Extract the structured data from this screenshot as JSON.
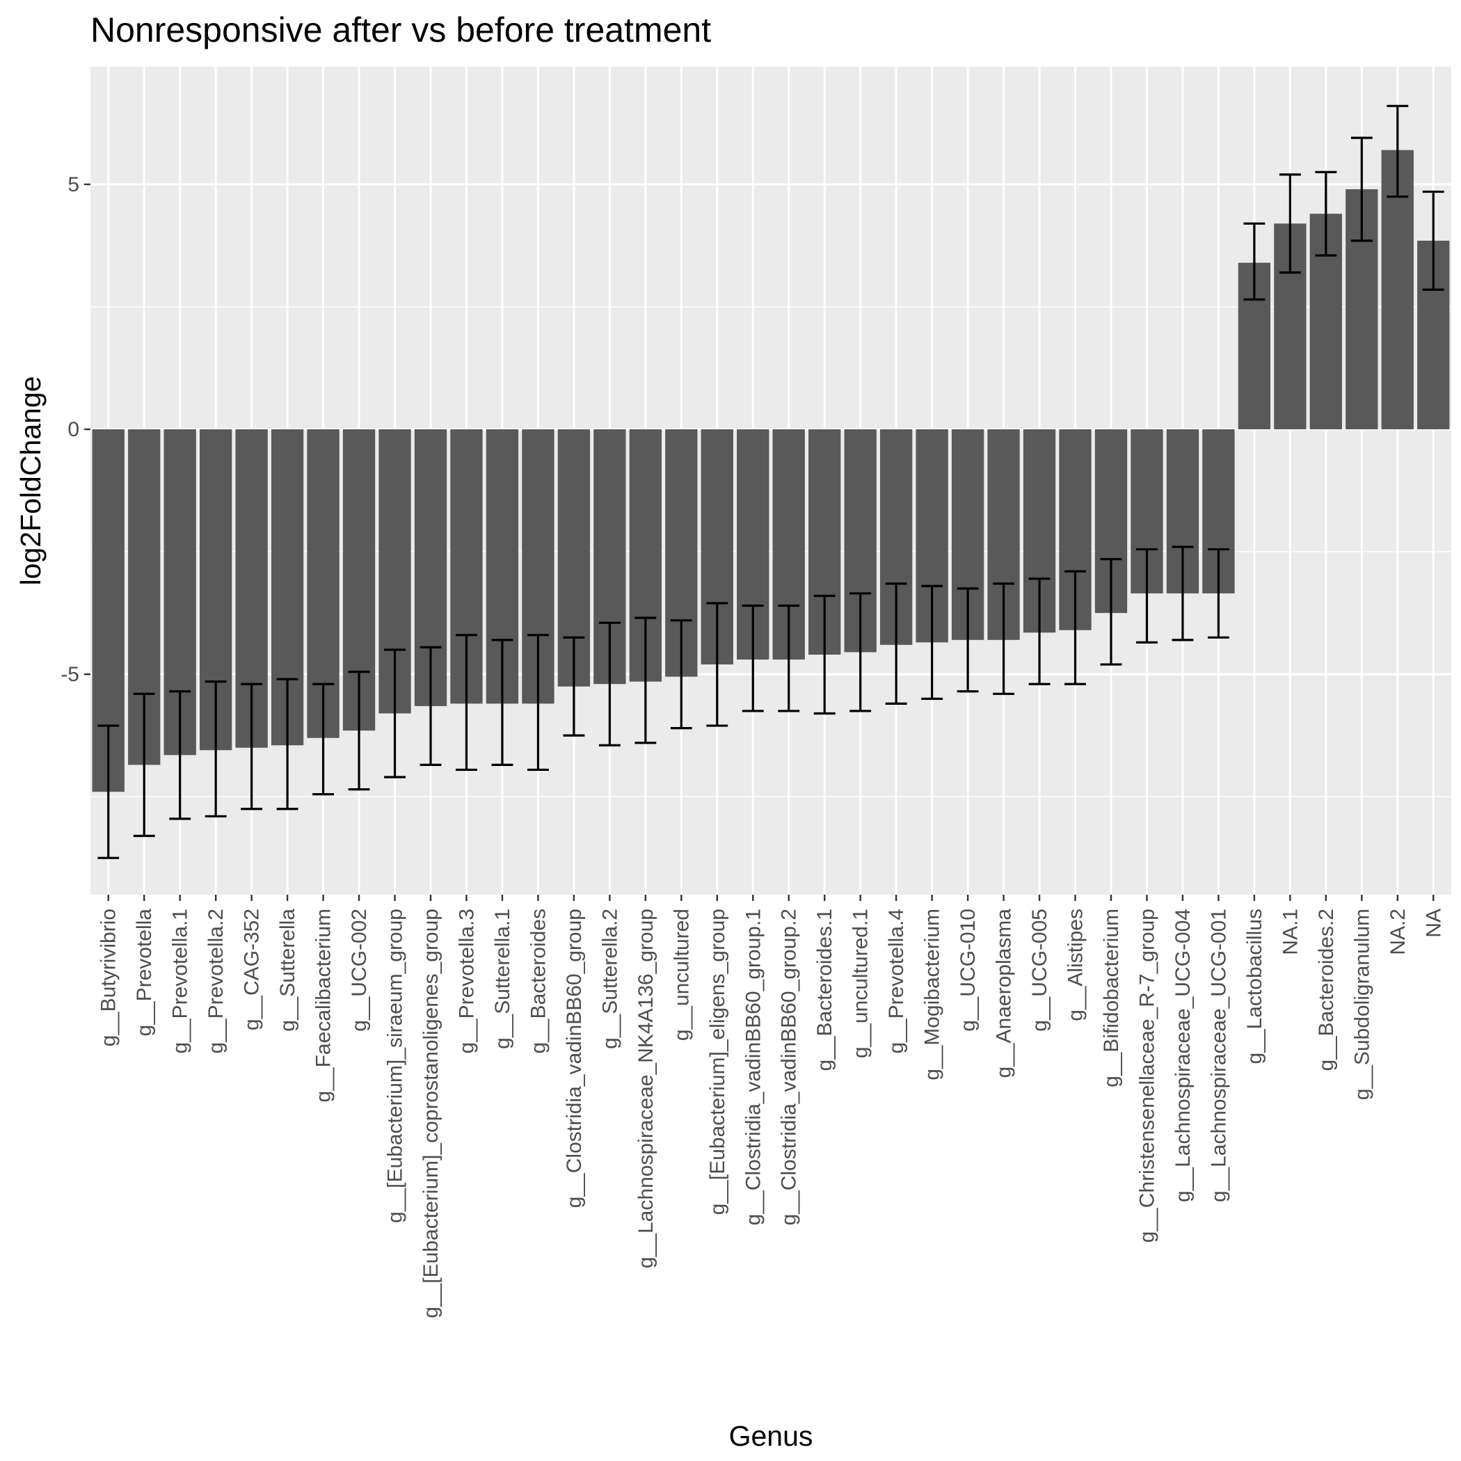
{
  "chart_data": {
    "type": "bar",
    "title": "Nonresponsive after vs before treatment",
    "xlabel": "Genus",
    "ylabel": "log2FoldChange",
    "ylim": [
      -9.5,
      7.4
    ],
    "yticks": [
      -5,
      0,
      5
    ],
    "ytick_labels": [
      "-5",
      "0",
      "5"
    ],
    "grid": true,
    "bar_color": "#595959",
    "panel_color": "#ebebeb",
    "grid_color": "#ffffff",
    "errorbar_color": "#000000",
    "categories": [
      "g__Butyrivibrio",
      "g__Prevotella",
      "g__Prevotella.1",
      "g__Prevotella.2",
      "g__CAG-352",
      "g__Sutterella",
      "g__Faecalibacterium",
      "g__UCG-002",
      "g__[Eubacterium]_siraeum_group",
      "g__[Eubacterium]_coprostanoligenes_group",
      "g__Prevotella.3",
      "g__Sutterella.1",
      "g__Bacteroides",
      "g__Clostridia_vadinBB60_group",
      "g__Sutterella.2",
      "g__Lachnospiraceae_NK4A136_group",
      "g__uncultured",
      "g__[Eubacterium]_eligens_group",
      "g__Clostridia_vadinBB60_group.1",
      "g__Clostridia_vadinBB60_group.2",
      "g__Bacteroides.1",
      "g__uncultured.1",
      "g__Prevotella.4",
      "g__Mogibacterium",
      "g__UCG-010",
      "g__Anaeroplasma",
      "g__UCG-005",
      "g__Alistipes",
      "g__Bifidobacterium",
      "g__Christensenellaceae_R-7_group",
      "g__Lachnospiraceae_UCG-004",
      "g__Lachnospiraceae_UCG-001",
      "g__Lactobacillus",
      "NA.1",
      "g__Bacteroides.2",
      "g__Subdoligranulum",
      "NA.2",
      "NA"
    ],
    "values": [
      -7.4,
      -6.85,
      -6.65,
      -6.55,
      -6.5,
      -6.45,
      -6.3,
      -6.15,
      -5.8,
      -5.65,
      -5.6,
      -5.6,
      -5.6,
      -5.25,
      -5.2,
      -5.15,
      -5.05,
      -4.8,
      -4.7,
      -4.7,
      -4.6,
      -4.55,
      -4.4,
      -4.35,
      -4.3,
      -4.3,
      -4.15,
      -4.1,
      -3.75,
      -3.35,
      -3.35,
      -3.35,
      3.4,
      4.2,
      4.4,
      4.9,
      5.7,
      3.85
    ],
    "error_low": [
      -8.75,
      -8.3,
      -7.95,
      -7.9,
      -7.75,
      -7.75,
      -7.45,
      -7.35,
      -7.1,
      -6.85,
      -6.95,
      -6.85,
      -6.95,
      -6.25,
      -6.45,
      -6.4,
      -6.1,
      -6.05,
      -5.75,
      -5.75,
      -5.8,
      -5.75,
      -5.6,
      -5.5,
      -5.35,
      -5.4,
      -5.2,
      -5.2,
      -4.8,
      -4.35,
      -4.3,
      -4.25,
      2.65,
      3.2,
      3.55,
      3.85,
      4.75,
      2.85
    ],
    "error_high": [
      -6.05,
      -5.4,
      -5.35,
      -5.15,
      -5.2,
      -5.1,
      -5.2,
      -4.95,
      -4.5,
      -4.45,
      -4.2,
      -4.3,
      -4.2,
      -4.25,
      -3.95,
      -3.85,
      -3.9,
      -3.55,
      -3.6,
      -3.6,
      -3.4,
      -3.35,
      -3.15,
      -3.2,
      -3.25,
      -3.15,
      -3.05,
      -2.9,
      -2.65,
      -2.45,
      -2.4,
      -2.45,
      4.2,
      5.2,
      5.25,
      5.95,
      6.6,
      4.85
    ]
  }
}
